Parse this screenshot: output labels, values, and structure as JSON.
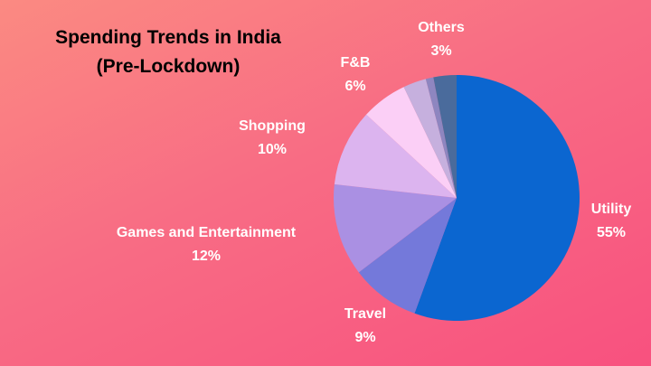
{
  "chart_data": {
    "type": "pie",
    "title": "Spending Trends in India",
    "subtitle": "(Pre-Lockdown)",
    "slices": [
      {
        "label": "Utility",
        "value": 55,
        "value_label": "55%",
        "color": "#0b66d0"
      },
      {
        "label": "Travel",
        "value": 9,
        "value_label": "9%",
        "color": "#7479da"
      },
      {
        "label": "Games and Entertainment",
        "value": 12,
        "value_label": "12%",
        "color": "#aa90e3"
      },
      {
        "label": "Shopping",
        "value": 10,
        "value_label": "10%",
        "color": "#dcb4ef"
      },
      {
        "label": "F&B",
        "value": 6,
        "value_label": "6%",
        "color": "#fbcff6"
      },
      {
        "label": "",
        "value": 3,
        "value_label": "",
        "color": "#c6b0de"
      },
      {
        "label": "",
        "value": 1,
        "value_label": "",
        "color": "#8e86c0"
      },
      {
        "label": "Others",
        "value": 3,
        "value_label": "3%",
        "color": "#4a6b9c"
      }
    ]
  }
}
